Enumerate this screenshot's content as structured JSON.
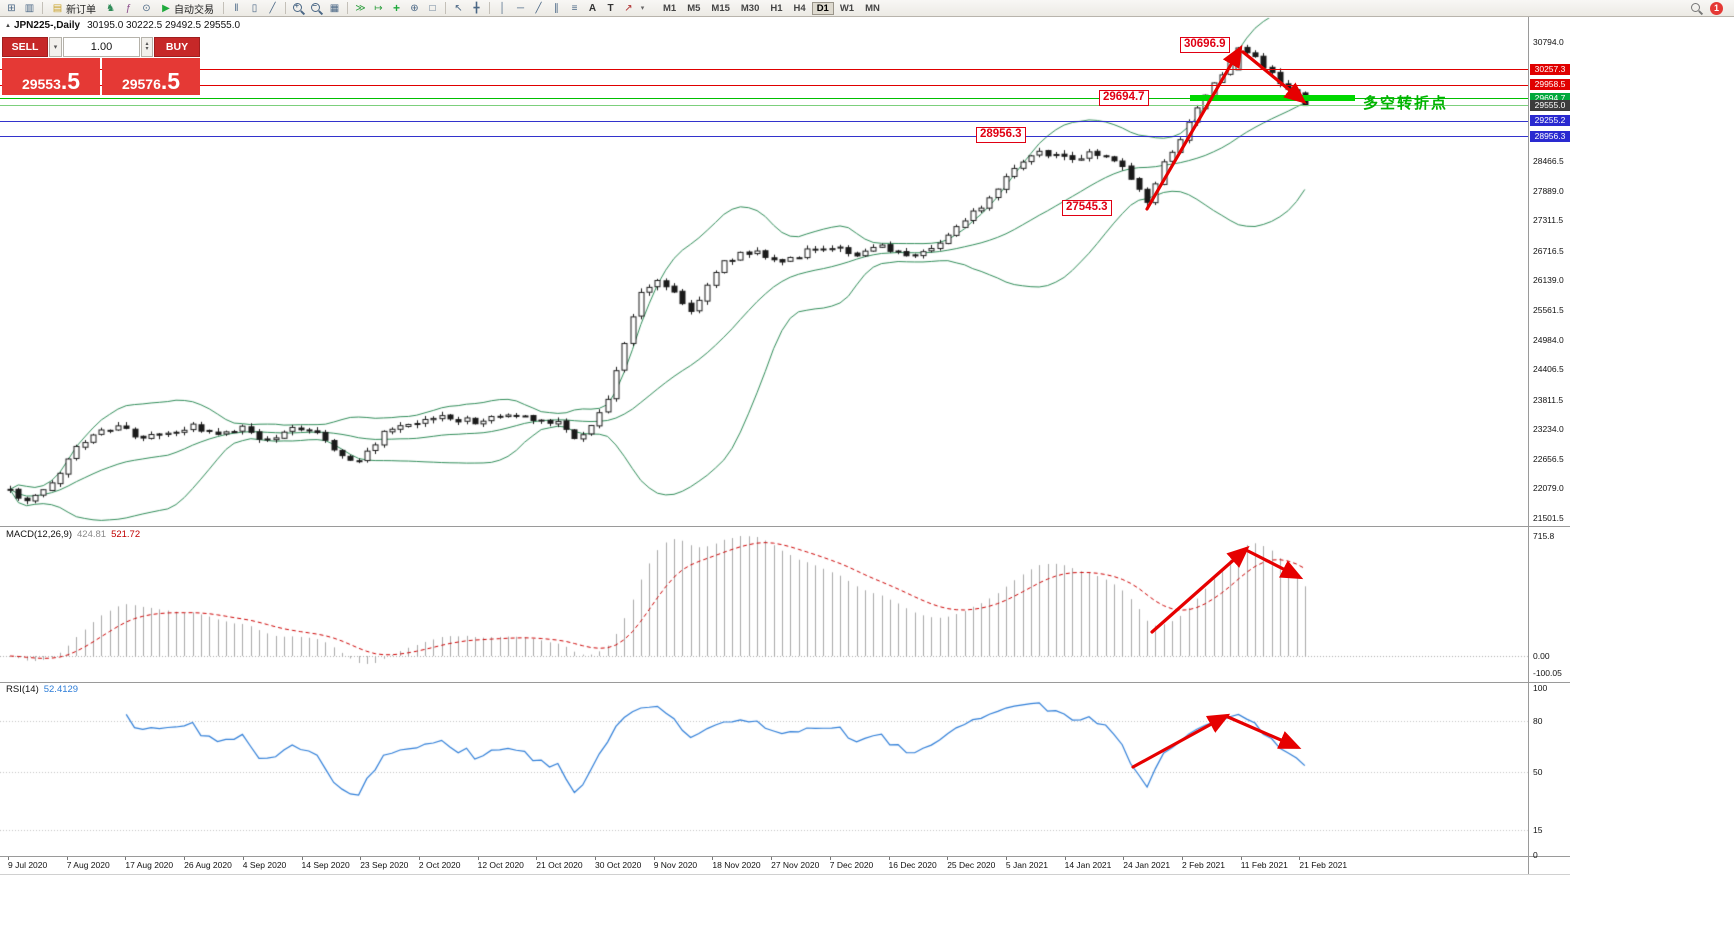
{
  "window": {
    "symbol_title": "JPN225-,Daily",
    "ohlc": "30195.0 30222.5 29492.5 29555.0",
    "collapse_glyph": "▲"
  },
  "toolbar": {
    "new_order_label": "新订单",
    "autotrade_label": "自动交易",
    "timeframes": [
      "M1",
      "M5",
      "M15",
      "M30",
      "H1",
      "H4",
      "D1",
      "W1",
      "MN"
    ],
    "active_timeframe": "D1",
    "notification_count": "1",
    "icons": {
      "new_chart": "⊞",
      "profiles": "▥",
      "new_order_doc": "▤",
      "expert_advisors": "♞",
      "scripts": "ƒ",
      "history": "⊙",
      "play": "▶",
      "bar_chart": "‖",
      "candle_chart": "▯",
      "line_chart": "╱",
      "tiles": "▦",
      "autoscroll": "≫",
      "shift": "↦",
      "indicator_plus": "+",
      "periods": "⊕",
      "templates": "□",
      "cursor": "↖",
      "crosshair": "╋",
      "vline": "│",
      "hline": "─",
      "trendline": "╱",
      "channel": "∥",
      "fibonacci": "≡",
      "text": "A",
      "label": "T",
      "arrow": "↗",
      "dropdown": "▾",
      "spin_up": "▴",
      "spin_down": "▾",
      "plus": "+",
      "minus": "−"
    }
  },
  "trade_panel": {
    "sell_label": "SELL",
    "buy_label": "BUY",
    "volume": "1.00",
    "sell_price_main": "29553",
    "sell_price_big": ".5",
    "buy_price_main": "29576",
    "buy_price_big": ".5"
  },
  "annotations": {
    "peak": "30696.9",
    "pivot": "29694.7",
    "support": "28956.3",
    "low": "27545.3",
    "pivot_text": "多空转折点"
  },
  "price_scale": {
    "ticks": [
      {
        "label": "30794.0",
        "value": 30794.0
      },
      {
        "label": "28466.5",
        "value": 28466.5
      },
      {
        "label": "27889.0",
        "value": 27889.0
      },
      {
        "label": "27311.5",
        "value": 27311.5
      },
      {
        "label": "26716.5",
        "value": 26716.5
      },
      {
        "label": "26139.0",
        "value": 26139.0
      },
      {
        "label": "25561.5",
        "value": 25561.5
      },
      {
        "label": "24984.0",
        "value": 24984.0
      },
      {
        "label": "24406.5",
        "value": 24406.5
      },
      {
        "label": "23811.5",
        "value": 23811.5
      },
      {
        "label": "23234.0",
        "value": 23234.0
      },
      {
        "label": "22656.5",
        "value": 22656.5
      },
      {
        "label": "22079.0",
        "value": 22079.0
      },
      {
        "label": "21501.5",
        "value": 21501.5
      }
    ],
    "tags": [
      {
        "label": "30257.3",
        "value": 30257.3,
        "bg": "#e00000",
        "line": "#e00000"
      },
      {
        "label": "29958.5",
        "value": 29958.5,
        "bg": "#e00000",
        "line": "#e00000"
      },
      {
        "label": "29694.7",
        "value": 29694.7,
        "bg": "#00a83c",
        "line": "#00c000"
      },
      {
        "label": "29555.0",
        "value": 29555.0,
        "bg": "#3c3c3c",
        "line": "#7ccf7c"
      },
      {
        "label": "29255.2",
        "value": 29255.2,
        "bg": "#2a2ad0",
        "line": "#3333cc"
      },
      {
        "label": "28956.3",
        "value": 28956.3,
        "bg": "#2a2ad0",
        "line": "#3333cc"
      }
    ]
  },
  "macd_panel": {
    "label": "MACD(12,26,9)",
    "value_main": "424.81",
    "value_signal": "521.72",
    "scale_max": "715.8",
    "scale_zero": "0.00",
    "scale_min": "-100.05"
  },
  "rsi_panel": {
    "label": "RSI(14)",
    "value": "52.4129",
    "scale": [
      {
        "label": "100",
        "value": 100
      },
      {
        "label": "80",
        "value": 80
      },
      {
        "label": "50",
        "value": 50
      },
      {
        "label": "15",
        "value": 15
      },
      {
        "label": "0",
        "value": 0
      }
    ]
  },
  "date_axis": [
    "9 Jul 2020",
    "7 Aug 2020",
    "17 Aug 2020",
    "26 Aug 2020",
    "4 Sep 2020",
    "14 Sep 2020",
    "23 Sep 2020",
    "2 Oct 2020",
    "12 Oct 2020",
    "21 Oct 2020",
    "30 Oct 2020",
    "9 Nov 2020",
    "18 Nov 2020",
    "27 Nov 2020",
    "7 Dec 2020",
    "16 Dec 2020",
    "25 Dec 2020",
    "5 Jan 2021",
    "14 Jan 2021",
    "24 Jan 2021",
    "2 Feb 2021",
    "11 Feb 2021",
    "21 Feb 2021"
  ],
  "chart_data": {
    "type": "candlestick",
    "symbol": "JPN225-",
    "timeframe": "Daily",
    "ohlc_display": {
      "open": "30195.0",
      "high": "30222.5",
      "low": "29492.5",
      "close": "29555.0"
    },
    "y_axis": {
      "top": 30794.0,
      "bottom": 21501.5
    },
    "candle_count": 157,
    "price_path": [
      [
        0,
        22050
      ],
      [
        2,
        21800
      ],
      [
        5,
        22150
      ],
      [
        8,
        22900
      ],
      [
        10,
        23150
      ],
      [
        13,
        23280
      ],
      [
        16,
        23050
      ],
      [
        19,
        23150
      ],
      [
        22,
        23280
      ],
      [
        25,
        23100
      ],
      [
        28,
        23280
      ],
      [
        31,
        23000
      ],
      [
        34,
        23300
      ],
      [
        37,
        23180
      ],
      [
        40,
        22700
      ],
      [
        42,
        22600
      ],
      [
        45,
        23150
      ],
      [
        48,
        23300
      ],
      [
        52,
        23480
      ],
      [
        56,
        23380
      ],
      [
        60,
        23520
      ],
      [
        64,
        23420
      ],
      [
        66,
        23380
      ],
      [
        68,
        23050
      ],
      [
        70,
        23300
      ],
      [
        72,
        23850
      ],
      [
        74,
        24900
      ],
      [
        76,
        25900
      ],
      [
        78,
        26150
      ],
      [
        80,
        25900
      ],
      [
        82,
        25520
      ],
      [
        84,
        26050
      ],
      [
        86,
        26500
      ],
      [
        88,
        26650
      ],
      [
        90,
        26700
      ],
      [
        93,
        26500
      ],
      [
        96,
        26700
      ],
      [
        99,
        26800
      ],
      [
        102,
        26650
      ],
      [
        105,
        26780
      ],
      [
        108,
        26620
      ],
      [
        110,
        26700
      ],
      [
        112,
        26900
      ],
      [
        114,
        27150
      ],
      [
        116,
        27450
      ],
      [
        118,
        27750
      ],
      [
        120,
        28200
      ],
      [
        122,
        28500
      ],
      [
        124,
        28650
      ],
      [
        126,
        28600
      ],
      [
        128,
        28450
      ],
      [
        130,
        28650
      ],
      [
        132,
        28550
      ],
      [
        134,
        28350
      ],
      [
        136,
        27900
      ],
      [
        137,
        27620
      ],
      [
        139,
        28400
      ],
      [
        141,
        28850
      ],
      [
        143,
        29500
      ],
      [
        145,
        29950
      ],
      [
        147,
        30450
      ],
      [
        148,
        30650
      ],
      [
        150,
        30500
      ],
      [
        152,
        30150
      ],
      [
        154,
        29850
      ],
      [
        156,
        29560
      ]
    ],
    "key_levels": [
      {
        "price": 30696.9,
        "note": "swing high"
      },
      {
        "price": 30257.3,
        "type": "resistance",
        "color": "red"
      },
      {
        "price": 29958.5,
        "type": "resistance",
        "color": "red"
      },
      {
        "price": 29694.7,
        "type": "pivot",
        "color": "green",
        "note": "多空转折点"
      },
      {
        "price": 29555.0,
        "type": "current price",
        "color": "black"
      },
      {
        "price": 29255.2,
        "type": "support",
        "color": "blue"
      },
      {
        "price": 28956.3,
        "type": "support",
        "color": "blue"
      },
      {
        "price": 27545.3,
        "note": "swing low"
      }
    ],
    "indicators": [
      "Bollinger Bands (period 20, dev 2, green)",
      "MACD(12,26,9)",
      "RSI(14)"
    ]
  },
  "colors": {
    "accent_red": "#e00000",
    "accent_green": "#00a83c",
    "accent_blue": "#2a2ad0",
    "band_green": "#00d800",
    "bollinger": "#2e8b57",
    "macd_histogram": "#a8a8a8",
    "macd_signal": "#cc0000",
    "rsi_line": "#2f7ed8",
    "arrow_red": "#e60000",
    "buy_sell_red": "#c62828",
    "price_box_red": "#e53935"
  }
}
